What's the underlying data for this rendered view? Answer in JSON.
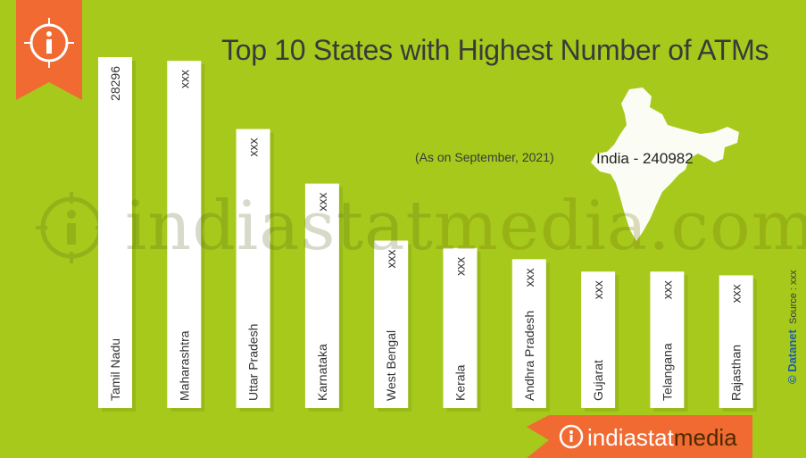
{
  "title": "Top 10 States with Highest Number of ATMs",
  "subtitle": "(As on September, 2021)",
  "india_label": "India - 240982",
  "watermark": {
    "part1": "indiastat",
    "part2": "media.com"
  },
  "footer_brand": {
    "part1": "indiastat",
    "part2": "media"
  },
  "source": {
    "copyright": "© Datanet",
    "text": "Source : xxx"
  },
  "colors": {
    "background": "#a6c91c",
    "bar": "#ffffff",
    "accent": "#f06a32",
    "map": "#ffffff"
  },
  "chart_data": {
    "type": "bar",
    "orientation": "vertical",
    "categories": [
      "Tamil Nadu",
      "Maharashtra",
      "Uttar Pradesh",
      "Karnataka",
      "West Bengal",
      "Kerala",
      "Andhra Pradesh",
      "Gujarat",
      "Telangana",
      "Rajasthan"
    ],
    "values": [
      28296,
      28000,
      22500,
      18100,
      13500,
      12900,
      12000,
      11000,
      11000,
      10700
    ],
    "value_labels": [
      "28296",
      "xxx",
      "xxx",
      "xxx",
      "xxx",
      "xxx",
      "xxx",
      "xxx",
      "xxx",
      "xxx"
    ],
    "ylim": [
      0,
      28296
    ],
    "grid": false,
    "legend": "none"
  }
}
